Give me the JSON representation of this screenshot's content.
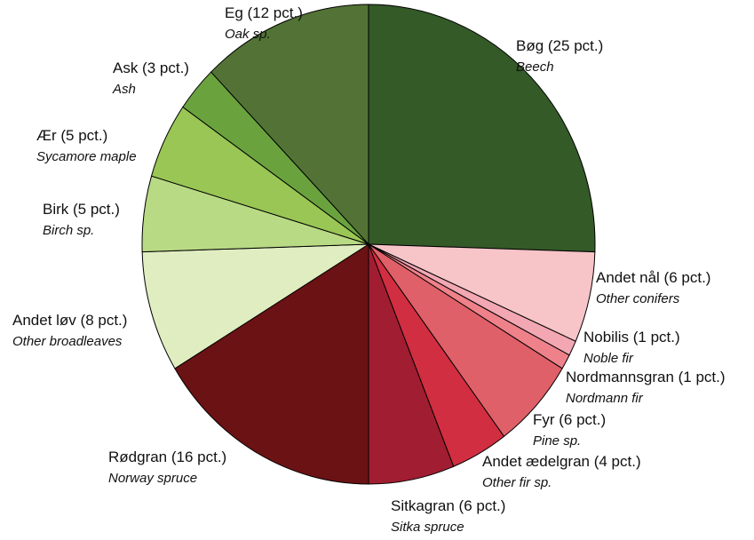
{
  "chart_data": {
    "type": "pie",
    "categories": [
      "Bøg (25 pct.)",
      "Andet nål (6 pct.)",
      "Nobilis (1 pct.)",
      "Nordmannsgran (1 pct.)",
      "Fyr (6 pct.)",
      "Andet ædelgran (4 pct.)",
      "Sitkagran (6 pct.)",
      "Rødgran (16 pct.)",
      "Andet løv (8 pct.)",
      "Birk (5 pct.)",
      "Ær (5 pct.)",
      "Ask (3 pct.)",
      "Eg (12 pct.)"
    ],
    "subtitles": [
      "Beech",
      "Other conifers",
      "Noble fir",
      "Nordmann fir",
      "Pine sp.",
      "Other fir sp.",
      "Sitka spruce",
      "Norway spruce",
      "Other broadleaves",
      "Birch sp.",
      "Sycamore maple",
      "Ash",
      "Oak sp."
    ],
    "values": [
      25,
      6,
      1,
      1,
      6,
      4,
      6,
      16,
      8,
      5,
      5,
      3,
      12
    ],
    "colors": [
      "#345a28",
      "#f7c4c8",
      "#f2a7b3",
      "#ee8189",
      "#df6068",
      "#d12e41",
      "#a11d31",
      "#6b1214",
      "#e0edc0",
      "#b9da85",
      "#99c655",
      "#6aa33e",
      "#527335"
    ]
  }
}
